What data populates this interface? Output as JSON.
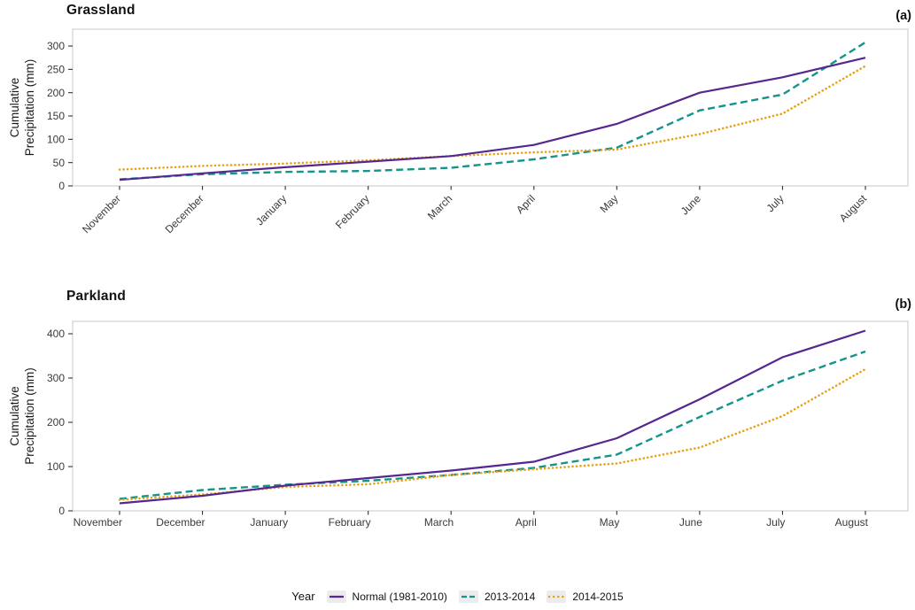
{
  "figure": {
    "panels": [
      {
        "title": "Grassland",
        "tag": "(a)"
      },
      {
        "title": "Parkland",
        "tag": "(b)"
      }
    ],
    "legend": {
      "title": "Year",
      "entries": [
        {
          "label": "Normal (1981-2010)",
          "style": "solid",
          "color": "#55278f"
        },
        {
          "label": "2013-2014",
          "style": "dashed",
          "color": "#13948c"
        },
        {
          "label": "2014-2015",
          "style": "dotted",
          "color": "#e7a118"
        }
      ]
    },
    "colors": {
      "panel_border": "#d4d4d4",
      "tick": "#333333",
      "text": "#121212"
    }
  },
  "chart_data": [
    {
      "id": "grassland",
      "type": "line",
      "title": "Grassland",
      "panel_tag": "(a)",
      "xlabel": "",
      "ylabel": "Cumulative Precipitation (mm)",
      "ylabel_lines": [
        "Cumulative",
        "Precipitation (mm)"
      ],
      "categories": [
        "November",
        "December",
        "January",
        "February",
        "March",
        "April",
        "May",
        "June",
        "July",
        "August"
      ],
      "x_tick_rotation": 45,
      "ylim": [
        0,
        300
      ],
      "yticks": [
        0,
        50,
        100,
        150,
        200,
        250,
        300
      ],
      "grid": false,
      "legend_position": "bottom",
      "series": [
        {
          "name": "Normal (1981-2010)",
          "color": "#55278f",
          "dash": "solid",
          "values": [
            13,
            27,
            40,
            52,
            64,
            88,
            133,
            200,
            233,
            275
          ]
        },
        {
          "name": "2013-2014",
          "color": "#13948c",
          "dash": "dashed",
          "values": [
            14,
            25,
            30,
            32,
            39,
            57,
            82,
            162,
            196,
            308
          ]
        },
        {
          "name": "2014-2015",
          "color": "#e7a118",
          "dash": "dotted",
          "values": [
            35,
            43,
            48,
            55,
            64,
            72,
            78,
            111,
            155,
            257
          ]
        }
      ]
    },
    {
      "id": "parkland",
      "type": "line",
      "title": "Parkland",
      "panel_tag": "(b)",
      "xlabel": "",
      "ylabel": "Cumulative Precipitation (mm)",
      "ylabel_lines": [
        "Cumulative",
        "Precipitation (mm)"
      ],
      "categories": [
        "November",
        "December",
        "January",
        "February",
        "March",
        "April",
        "May",
        "June",
        "July",
        "August"
      ],
      "x_tick_rotation": 0,
      "ylim": [
        0,
        400
      ],
      "yticks": [
        0,
        100,
        200,
        300,
        400
      ],
      "grid": false,
      "legend_position": "bottom",
      "series": [
        {
          "name": "Normal (1981-2010)",
          "color": "#55278f",
          "dash": "solid",
          "values": [
            17,
            34,
            57,
            74,
            91,
            111,
            164,
            252,
            347,
            407
          ]
        },
        {
          "name": "2013-2014",
          "color": "#13948c",
          "dash": "dashed",
          "values": [
            27,
            47,
            59,
            68,
            81,
            97,
            127,
            212,
            294,
            360
          ]
        },
        {
          "name": "2014-2015",
          "color": "#e7a118",
          "dash": "dotted",
          "values": [
            25,
            37,
            54,
            60,
            81,
            94,
            107,
            143,
            214,
            320
          ]
        }
      ]
    }
  ]
}
